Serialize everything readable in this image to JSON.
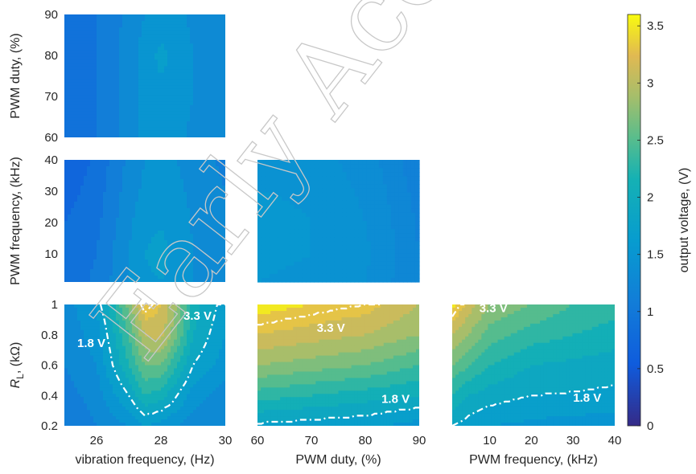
{
  "chart_data": {
    "type": "heatmap",
    "colorbar": {
      "label": "output voltage, (V)",
      "range": [
        0,
        3.6
      ],
      "ticks": [
        "0",
        "0.5",
        "1",
        "1.5",
        "2",
        "2.5",
        "3",
        "3.5"
      ],
      "colormap": "parula"
    },
    "watermark": "Early Access",
    "panels": [
      {
        "id": "vib-duty",
        "x": [
          25,
          30
        ],
        "y": [
          60,
          90
        ],
        "xlabel": "",
        "ylabel": "PWM duty, (%)",
        "xticks": [],
        "yticks": [
          "60",
          "70",
          "80",
          "90"
        ],
        "x_grid": [
          25,
          26,
          27,
          27.5,
          28,
          28.5,
          29,
          30
        ],
        "y_grid": [
          60,
          70,
          80,
          90
        ],
        "z": [
          [
            0.9,
            1.0,
            1.3,
            1.45,
            1.5,
            1.45,
            1.35,
            1.2
          ],
          [
            0.9,
            1.0,
            1.3,
            1.5,
            1.55,
            1.5,
            1.4,
            1.25
          ],
          [
            0.9,
            1.0,
            1.3,
            1.5,
            1.65,
            1.55,
            1.4,
            1.3
          ],
          [
            0.9,
            1.0,
            1.25,
            1.4,
            1.5,
            1.45,
            1.35,
            1.3
          ]
        ],
        "annotations": []
      },
      {
        "id": "vib-pwmfreq",
        "x": [
          25,
          30
        ],
        "y": [
          1,
          40
        ],
        "xlabel": "",
        "ylabel": "PWM frequency, (kHz)",
        "xticks": [],
        "yticks": [
          "10",
          "20",
          "30",
          "40"
        ],
        "x_grid": [
          25,
          26,
          27,
          27.5,
          28,
          28.5,
          29,
          30
        ],
        "y_grid": [
          1,
          10,
          20,
          30,
          40
        ],
        "z": [
          [
            0.85,
            1.05,
            1.4,
            1.55,
            1.6,
            1.5,
            1.4,
            1.3
          ],
          [
            0.85,
            1.0,
            1.4,
            1.6,
            1.68,
            1.52,
            1.4,
            1.3
          ],
          [
            0.8,
            0.95,
            1.35,
            1.55,
            1.58,
            1.5,
            1.38,
            1.25
          ],
          [
            0.7,
            0.9,
            1.3,
            1.45,
            1.5,
            1.45,
            1.35,
            1.2
          ],
          [
            0.6,
            0.85,
            1.25,
            1.4,
            1.45,
            1.4,
            1.3,
            1.15
          ]
        ],
        "annotations": []
      },
      {
        "id": "vib-rl",
        "x": [
          25,
          30
        ],
        "y": [
          0.2,
          1
        ],
        "xlabel": "vibration frequency, (Hz)",
        "ylabel": "R_L, (kΩ)",
        "xticks": [
          "26",
          "28",
          "30"
        ],
        "yticks": [
          "0.2",
          "0.4",
          "0.6",
          "0.8",
          "1"
        ],
        "x_grid": [
          25,
          26,
          27,
          27.5,
          28,
          28.5,
          29,
          30
        ],
        "y_grid": [
          0.2,
          0.4,
          0.6,
          0.8,
          1.0
        ],
        "z": [
          [
            1.0,
            1.2,
            1.4,
            1.6,
            1.5,
            1.4,
            1.3,
            1.2
          ],
          [
            1.1,
            1.3,
            1.8,
            2.2,
            2.1,
            1.8,
            1.5,
            1.3
          ],
          [
            1.2,
            1.4,
            2.2,
            2.6,
            2.6,
            2.2,
            1.8,
            1.5
          ],
          [
            1.25,
            1.5,
            2.4,
            3.0,
            3.1,
            2.6,
            2.0,
            1.6
          ],
          [
            1.3,
            1.6,
            2.7,
            3.4,
            3.2,
            2.8,
            2.1,
            1.7
          ]
        ],
        "annotations": [
          {
            "text": "3.3 V",
            "level": 3.3,
            "at": [
              28.7,
              0.9
            ]
          },
          {
            "text": "1.8 V",
            "level": 1.8,
            "at": [
              25.4,
              0.72
            ]
          }
        ]
      },
      {
        "id": "duty-rl",
        "x": [
          60,
          90
        ],
        "y": [
          0.2,
          1
        ],
        "xlabel": "PWM duty, (%)",
        "ylabel": "",
        "xticks": [
          "60",
          "70",
          "80",
          "90"
        ],
        "yticks": [],
        "x_grid": [
          60,
          70,
          80,
          90
        ],
        "y_grid": [
          0.2,
          0.4,
          0.6,
          0.8,
          1.0
        ],
        "z": [
          [
            1.75,
            1.7,
            1.65,
            1.5
          ],
          [
            2.3,
            2.2,
            2.1,
            2.0
          ],
          [
            2.8,
            2.7,
            2.6,
            2.4
          ],
          [
            3.2,
            3.1,
            3.0,
            2.8
          ],
          [
            3.5,
            3.4,
            3.3,
            3.0
          ]
        ],
        "annotations": [
          {
            "text": "3.3 V",
            "level": 3.3,
            "at": [
              71,
              0.82
            ]
          },
          {
            "text": "1.8 V",
            "level": 1.8,
            "at": [
              83,
              0.35
            ]
          }
        ]
      },
      {
        "id": "pwmfreq-rl",
        "x": [
          1,
          40
        ],
        "y": [
          0.2,
          1
        ],
        "xlabel": "PWM frequency, (kHz)",
        "ylabel": "",
        "xticks": [
          "10",
          "20",
          "30",
          "40"
        ],
        "yticks": [],
        "x_grid": [
          1,
          5,
          10,
          20,
          30,
          40
        ],
        "y_grid": [
          0.2,
          0.4,
          0.6,
          0.8,
          1.0
        ],
        "z": [
          [
            1.8,
            1.7,
            1.6,
            1.55,
            1.5,
            1.5
          ],
          [
            2.2,
            2.0,
            1.9,
            1.8,
            1.78,
            1.75
          ],
          [
            2.6,
            2.4,
            2.2,
            2.0,
            1.95,
            1.9
          ],
          [
            3.0,
            2.8,
            2.5,
            2.3,
            2.2,
            2.1
          ],
          [
            3.5,
            3.1,
            2.8,
            2.6,
            2.4,
            2.3
          ]
        ],
        "annotations": [
          {
            "text": "3.3 V",
            "level": 3.3,
            "at": [
              7.5,
              0.95
            ]
          },
          {
            "text": "1.8 V",
            "level": 1.8,
            "at": [
              30,
              0.36
            ]
          }
        ]
      }
    ]
  }
}
